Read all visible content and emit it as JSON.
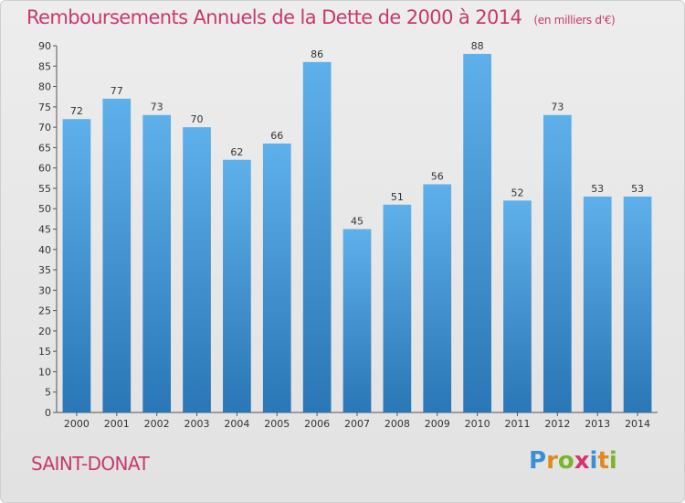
{
  "title": "Remboursements Annuels de la Dette de 2000 à 2014",
  "subtitle": "(en milliers d'€)",
  "place": "SAINT-DONAT",
  "logo": [
    "P",
    "r",
    "o",
    "x",
    "i",
    "t",
    "i"
  ],
  "colors": {
    "title": "#c8386e",
    "bar_top": "#5eb0ea",
    "bar_bottom": "#2a76b6",
    "logo": [
      "#3a8fd8",
      "#e08a1e",
      "#7bb52a",
      "#d8336e",
      "#3a8fd8",
      "#e08a1e",
      "#7bb52a"
    ]
  },
  "chart_data": {
    "type": "bar",
    "title": "Remboursements Annuels de la Dette de 2000 à 2014",
    "subtitle": "(en milliers d'€)",
    "xlabel": "",
    "ylabel": "",
    "categories": [
      "2000",
      "2001",
      "2002",
      "2003",
      "2004",
      "2005",
      "2006",
      "2007",
      "2008",
      "2009",
      "2010",
      "2011",
      "2012",
      "2013",
      "2014"
    ],
    "values": [
      72,
      77,
      73,
      70,
      62,
      66,
      86,
      45,
      51,
      56,
      88,
      52,
      73,
      53,
      53
    ],
    "ylim": [
      0,
      90
    ],
    "yticks": [
      0,
      5,
      10,
      15,
      20,
      25,
      30,
      35,
      40,
      45,
      50,
      55,
      60,
      65,
      70,
      75,
      80,
      85,
      90
    ],
    "grid": false,
    "legend": "none"
  }
}
